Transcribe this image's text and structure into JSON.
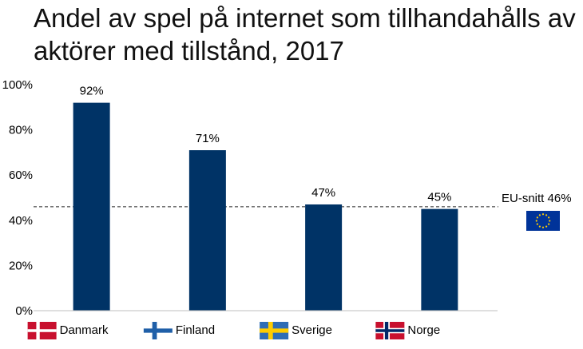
{
  "chart_data": {
    "type": "bar",
    "title": "Andel av spel på internet som tillhandahålls av aktörer med tillstånd, 2017",
    "categories": [
      "Danmark",
      "Finland",
      "Sverige",
      "Norge"
    ],
    "values": [
      92,
      71,
      47,
      45
    ],
    "data_labels": [
      "92%",
      "71%",
      "47%",
      "45%"
    ],
    "flags": [
      "denmark-flag-icon",
      "finland-flag-icon",
      "sweden-flag-icon",
      "norway-flag-icon"
    ],
    "ylim": [
      0,
      100
    ],
    "yticks": [
      0,
      20,
      40,
      60,
      80,
      100
    ],
    "ytick_labels": [
      "0%",
      "20%",
      "40%",
      "60%",
      "80%",
      "100%"
    ],
    "xlabel": "",
    "ylabel": "",
    "bar_color": "#003366",
    "reference_line": {
      "value": 46,
      "label": "EU-snitt 46%",
      "icon": "eu-flag-icon",
      "style": "dashed"
    },
    "grid": false,
    "legend": "none"
  }
}
